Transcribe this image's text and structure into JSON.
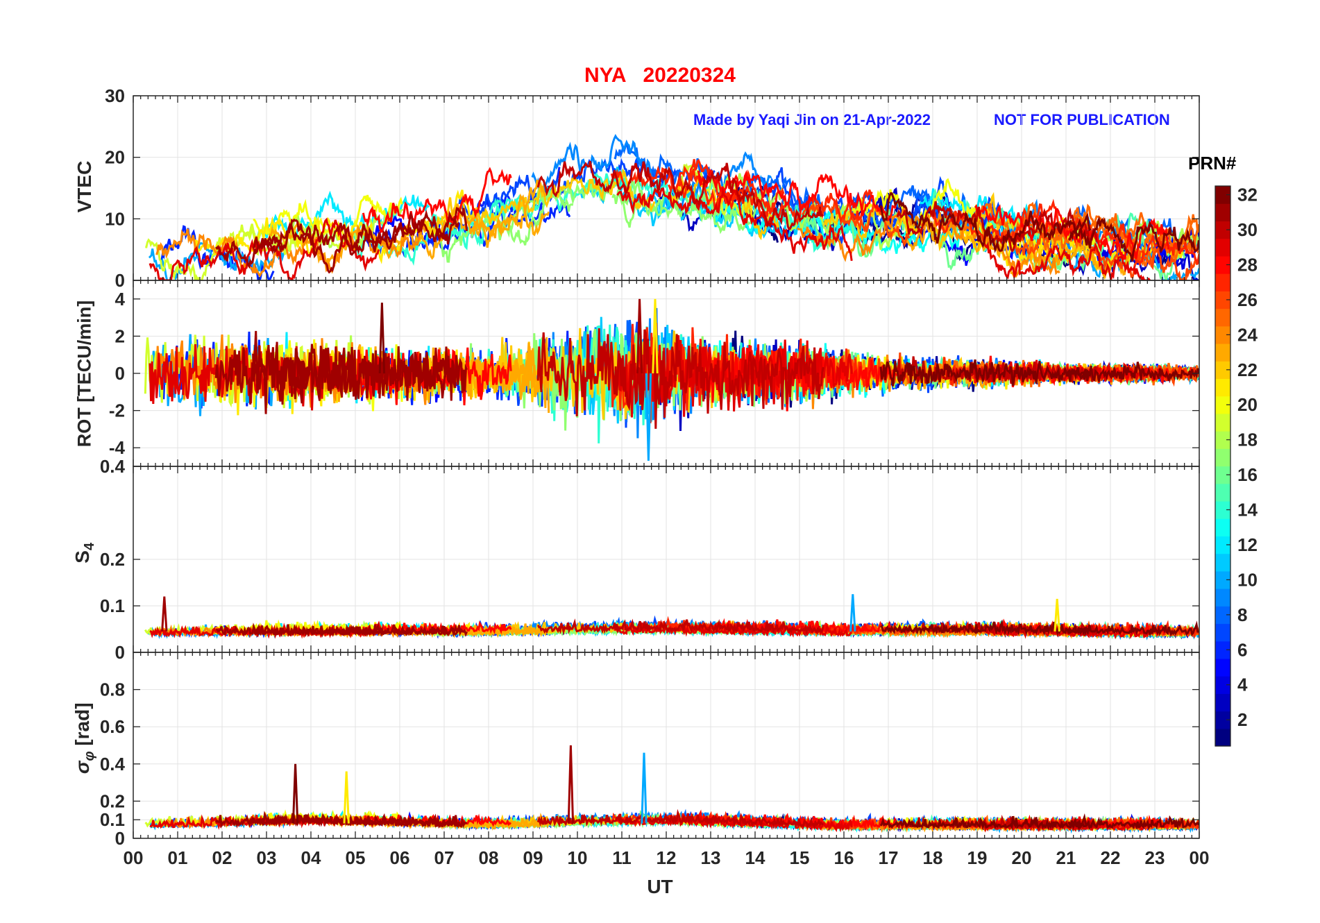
{
  "figure": {
    "title_station": "NYA",
    "title_date": "20220324",
    "note_made_by": "Made by Yaqi Jin on 21-Apr-2022",
    "note_publication": "NOT FOR PUBLICATION",
    "xlabel": "UT",
    "colorbar_title": "PRN#"
  },
  "chart_data": [
    {
      "type": "line",
      "panel": "VTEC",
      "ylabel": "VTEC",
      "ylim": [
        0,
        30
      ],
      "yticks": [
        "0",
        "10",
        "20",
        "30"
      ],
      "xlim": [
        0,
        24
      ],
      "grid": true,
      "series_summary": {
        "x": [
          0,
          2,
          4,
          6,
          8,
          10,
          11,
          12,
          14,
          16,
          18,
          20,
          22,
          24
        ],
        "y": [
          6,
          6,
          7,
          9,
          11,
          16,
          17,
          15,
          13,
          9,
          10,
          7,
          5,
          5
        ]
      }
    },
    {
      "type": "line",
      "panel": "ROT",
      "ylabel": "ROT [TECU/min]",
      "ylim": [
        -5,
        5
      ],
      "yticks": [
        "-4",
        "-2",
        "0",
        "2",
        "4"
      ],
      "xlim": [
        0,
        24
      ],
      "grid": true,
      "series_summary": {
        "x": [
          0,
          2,
          4,
          6,
          8,
          10,
          11.5,
          13,
          15,
          17,
          19,
          21,
          23,
          24
        ],
        "amplitude": [
          1.5,
          1.6,
          1.5,
          1.2,
          1.0,
          2.0,
          2.5,
          1.4,
          1.3,
          0.7,
          0.6,
          0.4,
          0.4,
          0.3
        ]
      },
      "spikes": [
        {
          "x": 11.4,
          "y": 4.0
        },
        {
          "x": 11.6,
          "y": -4.7
        },
        {
          "x": 11.75,
          "y": 4.0
        },
        {
          "x": 5.6,
          "y": 3.8
        }
      ]
    },
    {
      "type": "line",
      "panel": "S4",
      "ylabel": "S4",
      "ylim": [
        0,
        0.4
      ],
      "yticks": [
        "0",
        "0.1",
        "0.2",
        "0.4"
      ],
      "xlim": [
        0,
        24
      ],
      "grid": true,
      "series_summary": {
        "x": [
          0,
          4,
          8,
          12,
          16,
          20,
          24
        ],
        "y": [
          0.045,
          0.045,
          0.045,
          0.05,
          0.045,
          0.045,
          0.04
        ]
      },
      "spikes": [
        {
          "x": 0.7,
          "y": 0.12
        },
        {
          "x": 16.2,
          "y": 0.125
        },
        {
          "x": 20.8,
          "y": 0.115
        }
      ]
    },
    {
      "type": "line",
      "panel": "sigma_phi",
      "ylabel": "σφ [rad]",
      "ylim": [
        0,
        1
      ],
      "yticks": [
        "0",
        "0.1",
        "0.2",
        "0.4",
        "0.6",
        "0.8"
      ],
      "xlim": [
        0,
        24
      ],
      "grid": true,
      "series_summary": {
        "x": [
          0,
          4,
          8,
          12,
          16,
          20,
          24
        ],
        "y": [
          0.08,
          0.1,
          0.08,
          0.1,
          0.07,
          0.07,
          0.07
        ]
      },
      "spikes": [
        {
          "x": 9.85,
          "y": 0.5
        },
        {
          "x": 11.5,
          "y": 0.46
        },
        {
          "x": 4.8,
          "y": 0.36
        },
        {
          "x": 3.65,
          "y": 0.4
        }
      ]
    }
  ],
  "x_axis": {
    "ticks": [
      "00",
      "01",
      "02",
      "03",
      "04",
      "05",
      "06",
      "07",
      "08",
      "09",
      "10",
      "11",
      "12",
      "13",
      "14",
      "15",
      "16",
      "17",
      "18",
      "19",
      "20",
      "21",
      "22",
      "23",
      "00"
    ]
  },
  "colorbar": {
    "ticks": [
      "2",
      "4",
      "6",
      "8",
      "10",
      "12",
      "14",
      "16",
      "18",
      "20",
      "22",
      "24",
      "26",
      "28",
      "30",
      "32"
    ],
    "range": [
      1,
      32
    ],
    "colormap": "jet"
  }
}
